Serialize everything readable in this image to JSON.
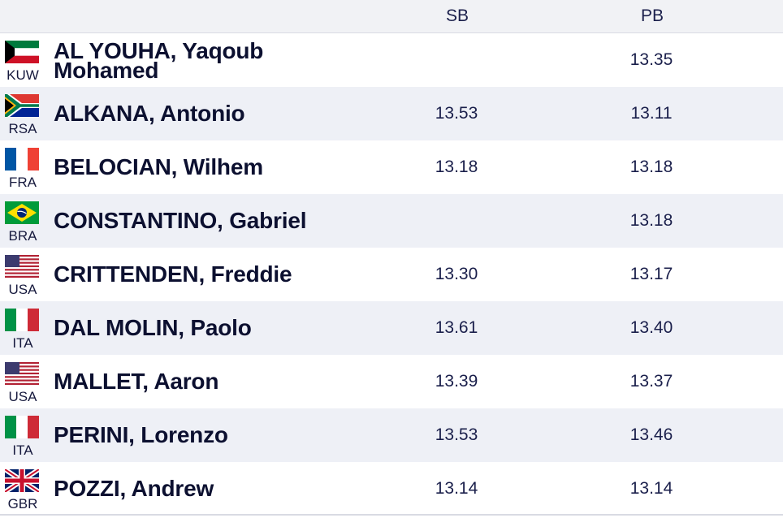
{
  "header": {
    "sb_label": "SB",
    "pb_label": "PB"
  },
  "rows": [
    {
      "name_line1": "AL YOUHA, Yaqoub",
      "name_line2": "Mohamed",
      "country": "KUW",
      "flag": "kuwait-flag-icon",
      "sb": "",
      "pb": "13.35"
    },
    {
      "name": "ALKANA, Antonio",
      "country": "RSA",
      "flag": "south-africa-flag-icon",
      "sb": "13.53",
      "pb": "13.11"
    },
    {
      "name": "BELOCIAN, Wilhem",
      "country": "FRA",
      "flag": "france-flag-icon",
      "sb": "13.18",
      "pb": "13.18"
    },
    {
      "name": "CONSTANTINO, Gabriel",
      "country": "BRA",
      "flag": "brazil-flag-icon",
      "sb": "",
      "pb": "13.18"
    },
    {
      "name": "CRITTENDEN, Freddie",
      "country": "USA",
      "flag": "usa-flag-icon",
      "sb": "13.30",
      "pb": "13.17"
    },
    {
      "name": "DAL MOLIN, Paolo",
      "country": "ITA",
      "flag": "italy-flag-icon",
      "sb": "13.61",
      "pb": "13.40"
    },
    {
      "name": "MALLET, Aaron",
      "country": "USA",
      "flag": "usa-flag-icon",
      "sb": "13.39",
      "pb": "13.37"
    },
    {
      "name": "PERINI, Lorenzo",
      "country": "ITA",
      "flag": "italy-flag-icon",
      "sb": "13.53",
      "pb": "13.46"
    },
    {
      "name": "POZZI, Andrew",
      "country": "GBR",
      "flag": "uk-flag-icon",
      "sb": "13.14",
      "pb": "13.14"
    }
  ]
}
